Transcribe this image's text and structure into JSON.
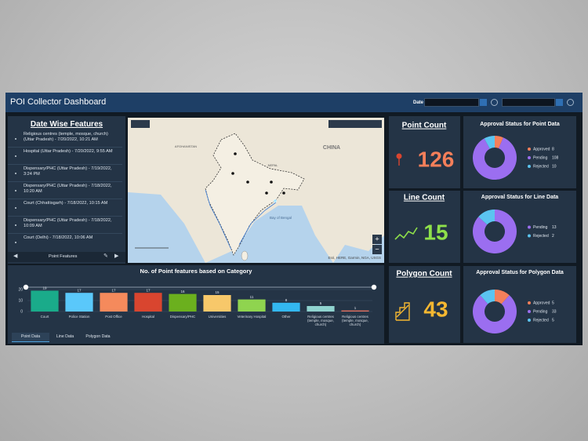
{
  "header": {
    "title": "POI Collector Dashboard",
    "date_label": "Date"
  },
  "feature_list": {
    "title": "Date Wise Features",
    "items": [
      "Religious centres (temple, mosque, church) (Uttar Pradesh) - 7/20/2022, 10:21 AM",
      "Hospital (Uttar Pradesh) - 7/20/2022, 9:55 AM",
      "Dispensary/PHC (Uttar Pradesh) - 7/19/2022, 3:24 PM",
      "Dispensary/PHC (Uttar Pradesh) - 7/18/2022, 10:20 AM",
      "Court (Chhattisgarh) - 7/18/2022, 10:15 AM",
      "Dispensary/PHC (Uttar Pradesh) - 7/18/2022, 10:09 AM",
      "Court (Delhi) - 7/18/2022, 10:06 AM"
    ],
    "footer": "Point Features"
  },
  "map": {
    "labels": [
      "AFGHANISTAN",
      "CHINA",
      "NEPAL",
      "Bay of Bengal"
    ],
    "attribution": "Esri, HERE, Garmin, NGA, USGS"
  },
  "counters": [
    {
      "title": "Point Count",
      "value": 126,
      "color": "#f47f5a"
    },
    {
      "title": "Line Count",
      "value": 15,
      "color": "#8ee04a"
    },
    {
      "title": "Polygon Count",
      "value": 43,
      "color": "#f5b731"
    }
  ],
  "tabs": [
    "Point Data",
    "Line Data",
    "Polygon Data"
  ],
  "chart_data": [
    {
      "type": "bar",
      "title": "No. of Point features based on Category",
      "categories": [
        "Court",
        "Police Station",
        "Post Office",
        "Hospital",
        "Dispensary/PHC",
        "Universities",
        "Veterinary Hospital",
        "Other",
        "Religious centres (temple, mosque, church)",
        "Religious centres (temple, mosque, church)"
      ],
      "values": [
        19,
        17,
        17,
        17,
        16,
        15,
        11,
        8,
        5,
        1
      ],
      "colors": [
        "#1aab8a",
        "#5ac8fa",
        "#f58a5c",
        "#d9452f",
        "#6bb01e",
        "#f7c86a",
        "#8fd44f",
        "#33b8f0",
        "#8fd3cf",
        "#e07060"
      ],
      "ylim": [
        0,
        20
      ],
      "yticks": [
        0,
        10,
        20
      ],
      "grid": true
    },
    {
      "type": "pie",
      "title": "Approval Status for Point Data",
      "categories": [
        "Approved",
        "Pending",
        "Rejected"
      ],
      "values": [
        8,
        108,
        10
      ],
      "colors": [
        "#f47f5a",
        "#9b6ef0",
        "#5bc4f0"
      ]
    },
    {
      "type": "pie",
      "title": "Approval Status for Line Data",
      "categories": [
        "Pending",
        "Rejected"
      ],
      "values": [
        13,
        2
      ],
      "colors": [
        "#9b6ef0",
        "#5bc4f0"
      ]
    },
    {
      "type": "pie",
      "title": "Approval Status for Polygon Data",
      "categories": [
        "Approved",
        "Pending",
        "Rejected"
      ],
      "values": [
        5,
        33,
        5
      ],
      "colors": [
        "#f47f5a",
        "#9b6ef0",
        "#5bc4f0"
      ]
    }
  ]
}
